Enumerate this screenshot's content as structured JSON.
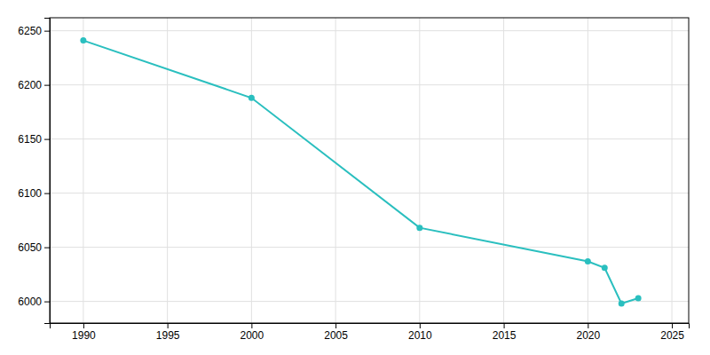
{
  "chart_data": {
    "type": "line",
    "x": [
      1990,
      2000,
      2010,
      2020,
      2021,
      2022,
      2023
    ],
    "values": [
      6241,
      6188,
      6068,
      6037,
      6031,
      5998,
      6003
    ],
    "color": "#2abfbf",
    "marker": "circle",
    "xlim": [
      1988,
      2026
    ],
    "ylim": [
      5980,
      6262
    ],
    "xticks": [
      1990,
      1995,
      2000,
      2005,
      2010,
      2015,
      2020,
      2025
    ],
    "yticks": [
      6000,
      6050,
      6100,
      6150,
      6200,
      6250
    ],
    "grid": true
  }
}
